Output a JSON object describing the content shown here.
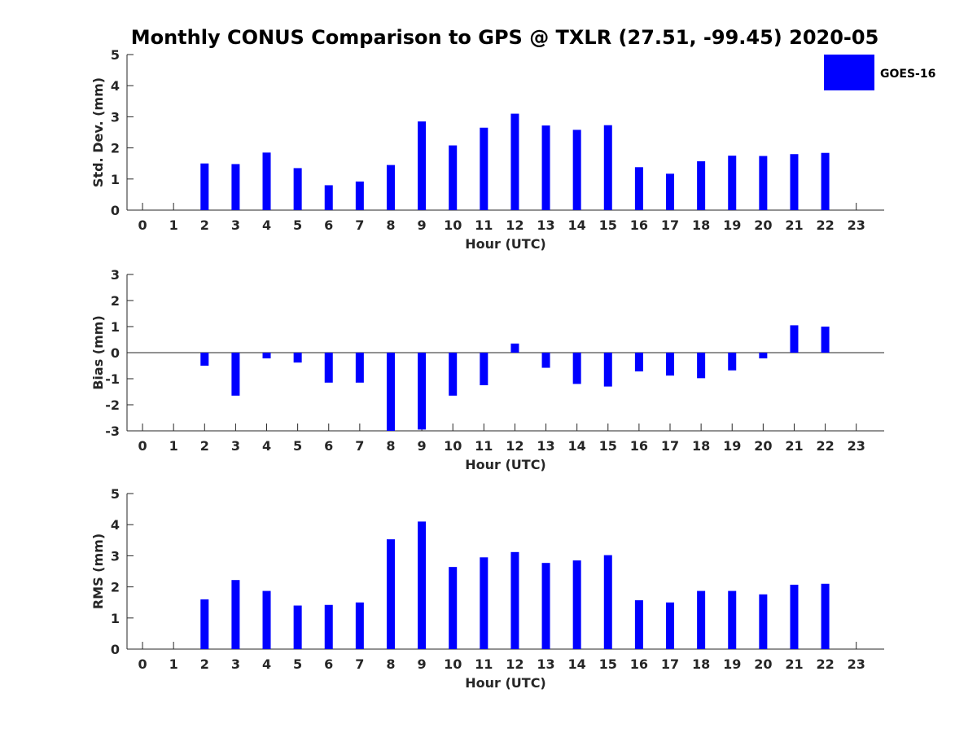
{
  "figure": {
    "title": "Monthly CONUS Comparison to GPS @ TXLR (27.51, -99.45) 2020-05"
  },
  "legend": {
    "label": "GOES-16",
    "color": "#0000ff",
    "placement": "top-right"
  },
  "chart_data": [
    {
      "type": "bar",
      "name": "std-dev",
      "xlabel": "Hour (UTC)",
      "ylabel": "Std. Dev. (mm)",
      "categories": [
        "0",
        "1",
        "2",
        "3",
        "4",
        "5",
        "6",
        "7",
        "8",
        "9",
        "10",
        "11",
        "12",
        "13",
        "14",
        "15",
        "16",
        "17",
        "18",
        "19",
        "20",
        "21",
        "22",
        "23"
      ],
      "ylim": [
        0,
        5
      ],
      "yticks": [
        0,
        1,
        2,
        3,
        4,
        5
      ],
      "series": [
        {
          "name": "GOES-16",
          "color": "#0000ff",
          "values": [
            null,
            null,
            1.5,
            1.48,
            1.85,
            1.35,
            0.8,
            0.92,
            1.45,
            2.85,
            2.08,
            2.65,
            3.1,
            2.72,
            2.58,
            2.73,
            1.38,
            1.17,
            1.57,
            1.75,
            1.74,
            1.8,
            1.84,
            null
          ]
        }
      ]
    },
    {
      "type": "bar",
      "name": "bias",
      "xlabel": "Hour (UTC)",
      "ylabel": "Bias (mm)",
      "categories": [
        "0",
        "1",
        "2",
        "3",
        "4",
        "5",
        "6",
        "7",
        "8",
        "9",
        "10",
        "11",
        "12",
        "13",
        "14",
        "15",
        "16",
        "17",
        "18",
        "19",
        "20",
        "21",
        "22",
        "23"
      ],
      "ylim": [
        -3,
        3
      ],
      "yticks": [
        -3,
        -2,
        -1,
        0,
        1,
        2,
        3
      ],
      "zero_line": true,
      "series": [
        {
          "name": "GOES-16",
          "color": "#0000ff",
          "values": [
            null,
            null,
            -0.5,
            -1.65,
            -0.22,
            -0.38,
            -1.15,
            -1.15,
            -3.0,
            -2.95,
            -1.65,
            -1.25,
            0.35,
            -0.58,
            -1.2,
            -1.3,
            -0.72,
            -0.88,
            -0.98,
            -0.68,
            -0.22,
            1.05,
            1.0,
            null
          ]
        }
      ]
    },
    {
      "type": "bar",
      "name": "rms",
      "xlabel": "Hour (UTC)",
      "ylabel": "RMS (mm)",
      "categories": [
        "0",
        "1",
        "2",
        "3",
        "4",
        "5",
        "6",
        "7",
        "8",
        "9",
        "10",
        "11",
        "12",
        "13",
        "14",
        "15",
        "16",
        "17",
        "18",
        "19",
        "20",
        "21",
        "22",
        "23"
      ],
      "ylim": [
        0,
        5
      ],
      "yticks": [
        0,
        1,
        2,
        3,
        4,
        5
      ],
      "series": [
        {
          "name": "GOES-16",
          "color": "#0000ff",
          "values": [
            null,
            null,
            1.6,
            2.22,
            1.87,
            1.4,
            1.42,
            1.5,
            3.53,
            4.1,
            2.64,
            2.95,
            3.12,
            2.77,
            2.85,
            3.02,
            1.57,
            1.5,
            1.87,
            1.87,
            1.76,
            2.07,
            2.1,
            null
          ]
        }
      ]
    }
  ]
}
